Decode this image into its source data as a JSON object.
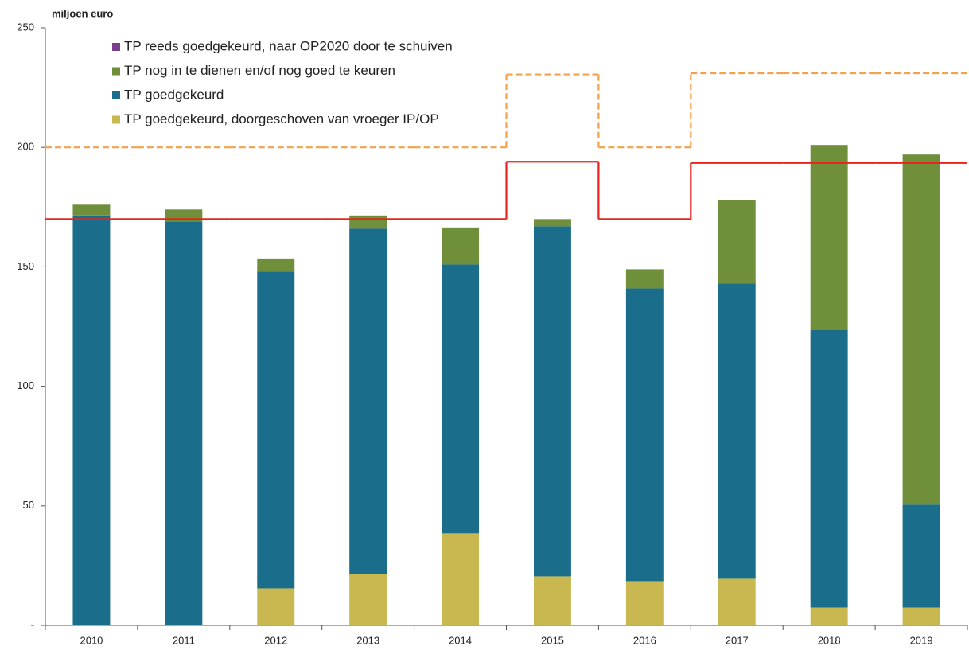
{
  "chart_data": {
    "type": "bar",
    "stacked": true,
    "y_label": "miljoen euro",
    "categories": [
      "2010",
      "2011",
      "2012",
      "2013",
      "2014",
      "2015",
      "2016",
      "2017",
      "2018",
      "2019"
    ],
    "series": [
      {
        "name": "TP goedgekeurd, doorgeschoven van vroeger IP/OP",
        "color": "#c8b84f",
        "values": [
          0,
          0,
          15.5,
          21.5,
          38.5,
          20.5,
          18.5,
          19.5,
          7.5,
          7.5
        ]
      },
      {
        "name": "TP goedgekeurd",
        "color": "#1a6e8c",
        "values": [
          171.5,
          169,
          132.5,
          144.5,
          112.5,
          146.5,
          122.5,
          123.5,
          116,
          43
        ]
      },
      {
        "name": "TP nog in te dienen en/of nog goed te keuren",
        "color": "#6f8f3a",
        "values": [
          4.5,
          5,
          5.5,
          5.5,
          15.5,
          3,
          8,
          35,
          77.5,
          146.5
        ]
      },
      {
        "name": "TP reeds goedgekeurd, naar OP2020 door te schuiven",
        "color": "#7b3f8c",
        "values": [
          0,
          0,
          0,
          0,
          0,
          0,
          0,
          0,
          0,
          0
        ]
      }
    ],
    "lines": [
      {
        "color": "#e8231c",
        "style": "solid",
        "values": [
          170,
          170,
          170,
          170,
          170,
          194,
          170,
          193.5,
          193.5,
          193.5
        ]
      },
      {
        "color": "#f5a04a",
        "style": "dashed",
        "values": [
          200,
          200,
          200,
          200,
          200,
          230.5,
          200,
          231,
          231,
          231
        ]
      }
    ],
    "ylim": [
      0,
      250
    ],
    "yticks": [
      {
        "value": 0,
        "label": "-"
      },
      50,
      100,
      150,
      200,
      250
    ],
    "grid": false
  }
}
